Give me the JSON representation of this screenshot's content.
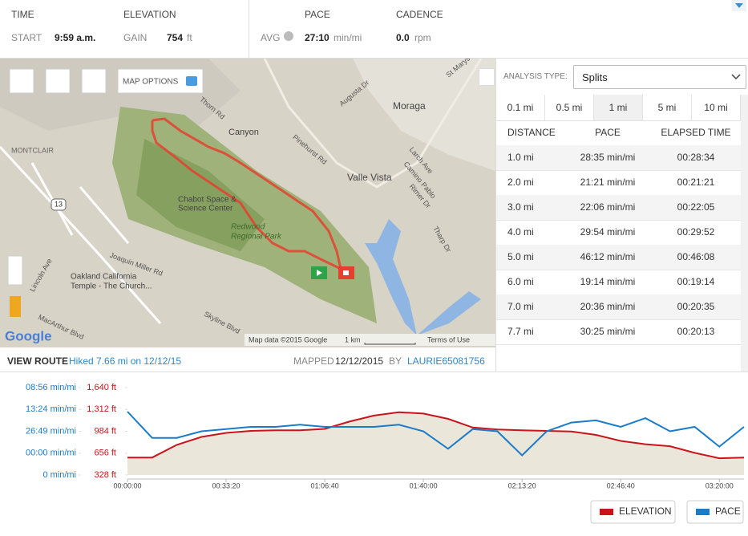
{
  "header": {
    "time": {
      "label": "TIME",
      "start_label": "START",
      "start": "9:59 a.m."
    },
    "elevation": {
      "label": "ELEVATION",
      "gain_label": "GAIN",
      "gain": "754",
      "unit": "ft"
    },
    "pace": {
      "label": "PACE",
      "avg_label": "AVG",
      "avg": "27:10",
      "unit": "min/mi"
    },
    "cadence": {
      "label": "CADENCE",
      "value": "0.0",
      "unit": "rpm"
    }
  },
  "map": {
    "options": "MAP OPTIONS",
    "labels": [
      "Moraga",
      "Canyon",
      "Valle Vista",
      "MONTCLAIR",
      "Chabot Space &",
      "Science Center",
      "Redwood",
      "Regional Park",
      "Oakland California",
      "Temple - The Church...",
      "Skyline Blvd",
      "Joaquin Miller Rd",
      "Pinehurst Rd",
      "Lincoln Ave",
      "MacArthur Blvd",
      "Larch Ave",
      "Camino Pablo",
      "Rimer Dr",
      "St Marys Rd",
      "Augusta Dr",
      "Thorn Rd",
      "Tharp Dr",
      "13"
    ],
    "footer": {
      "logo": "Google",
      "data": "Map data ©2015 Google",
      "scale": "1 km",
      "terms": "Terms of Use"
    }
  },
  "route": {
    "view": "VIEW ROUTE",
    "hiked": "Hiked 7.66 mi on 12/12/15",
    "mapped_label": "MAPPED",
    "mapped": "12/12/2015",
    "by": "BY",
    "user": "LAURIE65081756"
  },
  "analysis": {
    "label": "ANALYSIS TYPE:",
    "type": "Splits",
    "tabs": [
      "0.1 mi",
      "0.5 mi",
      "1 mi",
      "5 mi",
      "10 mi"
    ],
    "columns": [
      "DISTANCE",
      "PACE",
      "ELAPSED TIME"
    ],
    "rows": [
      [
        "1.0 mi",
        "28:35 min/mi",
        "00:28:34"
      ],
      [
        "2.0 mi",
        "21:21 min/mi",
        "00:21:21"
      ],
      [
        "3.0 mi",
        "22:06 min/mi",
        "00:22:05"
      ],
      [
        "4.0 mi",
        "29:54 min/mi",
        "00:29:52"
      ],
      [
        "5.0 mi",
        "46:12 min/mi",
        "00:46:08"
      ],
      [
        "6.0 mi",
        "19:14 min/mi",
        "00:19:14"
      ],
      [
        "7.0 mi",
        "20:36 min/mi",
        "00:20:35"
      ],
      [
        "7.7 mi",
        "30:25 min/mi",
        "00:20:13"
      ]
    ]
  },
  "chart_data": {
    "type": "line",
    "x": [
      0,
      500,
      1000,
      1500,
      2000,
      2500,
      3000,
      3500,
      4000,
      4500,
      5000,
      5500,
      6000,
      6500,
      7000,
      7500,
      8000,
      8500,
      9000,
      9500,
      10000,
      10500,
      11000,
      11500,
      12000,
      12500
    ],
    "xlim": [
      0,
      12500
    ],
    "xticks": [
      {
        "value": 0,
        "label": "00:00:00"
      },
      {
        "value": 2000,
        "label": "00:33:20"
      },
      {
        "value": 4000,
        "label": "01:06:40"
      },
      {
        "value": 6000,
        "label": "01:40:00"
      },
      {
        "value": 8000,
        "label": "02:13:20"
      },
      {
        "value": 10000,
        "label": "02:46:40"
      },
      {
        "value": 12000,
        "label": "03:20:00"
      }
    ],
    "ylim": [
      328,
      1640
    ],
    "yticks": [
      {
        "value": 328,
        "label": "328 ft"
      },
      {
        "value": 656,
        "label": "656 ft"
      },
      {
        "value": 984,
        "label": "984 ft"
      },
      {
        "value": 1312,
        "label": "1,312 ft"
      },
      {
        "value": 1640,
        "label": "1,640 ft"
      }
    ],
    "y2lim": [
      0,
      4
    ],
    "y2ticks": [
      {
        "value": 0,
        "label": "0 min/mi"
      },
      {
        "value": 1,
        "label": "00:00 min/mi"
      },
      {
        "value": 2,
        "label": "26:49 min/mi"
      },
      {
        "value": 3,
        "label": "13:24 min/mi"
      },
      {
        "value": 4,
        "label": "08:56 min/mi"
      }
    ],
    "series": [
      {
        "name": "ELEVATION",
        "color": "#c8151b",
        "values": [
          590,
          590,
          780,
          900,
          960,
          990,
          1000,
          1000,
          1020,
          1130,
          1220,
          1270,
          1250,
          1170,
          1040,
          1010,
          1000,
          990,
          980,
          930,
          840,
          790,
          760,
          660,
          580,
          590
        ]
      },
      {
        "name": "PACE",
        "color": "#1a7bc9",
        "axis": "y2",
        "values": [
          2.9,
          1.7,
          1.7,
          2.0,
          2.1,
          2.2,
          2.2,
          2.3,
          2.2,
          2.2,
          2.2,
          2.3,
          2.0,
          1.2,
          2.1,
          2.0,
          0.9,
          2.0,
          2.4,
          2.5,
          2.2,
          2.6,
          2.0,
          2.2,
          1.3,
          2.2
        ]
      }
    ],
    "area_color": "#ebe6da"
  }
}
